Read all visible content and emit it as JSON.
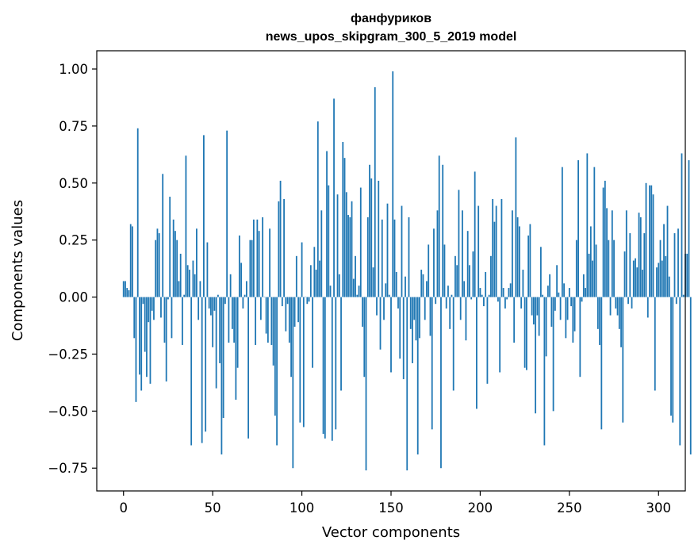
{
  "chart_data": {
    "type": "bar",
    "title": "фанфуриков",
    "subtitle": "news_upos_skipgram_300_5_2019 model",
    "xlabel": "Vector components",
    "ylabel": "Components values",
    "xlim": [
      -15,
      315
    ],
    "ylim": [
      -0.85,
      1.08
    ],
    "xticks": [
      0,
      50,
      100,
      150,
      200,
      250,
      300
    ],
    "yticks": [
      -0.75,
      -0.5,
      -0.25,
      0.0,
      0.25,
      0.5,
      0.75,
      1.0
    ],
    "ytick_labels": [
      "−0.75",
      "−0.50",
      "−0.25",
      "0.00",
      "0.25",
      "0.50",
      "0.75",
      "1.00"
    ],
    "bar_color": "#1f77b4",
    "grid": false,
    "legend": "none",
    "values": [
      0.07,
      0.07,
      0.04,
      0.03,
      0.32,
      0.31,
      -0.18,
      -0.46,
      0.74,
      -0.34,
      -0.41,
      -0.03,
      -0.24,
      -0.35,
      -0.11,
      -0.38,
      -0.06,
      -0.1,
      0.25,
      0.3,
      0.28,
      -0.09,
      0.54,
      -0.2,
      -0.37,
      -0.01,
      0.44,
      -0.18,
      0.34,
      0.29,
      0.25,
      0.07,
      0.19,
      -0.21,
      0.01,
      0.62,
      0.14,
      0.12,
      -0.65,
      0.16,
      0.1,
      0.3,
      -0.1,
      0.07,
      -0.64,
      0.71,
      -0.59,
      0.24,
      -0.05,
      -0.08,
      -0.22,
      -0.06,
      -0.4,
      0.01,
      -0.29,
      -0.69,
      -0.53,
      -0.03,
      0.73,
      -0.2,
      0.1,
      -0.14,
      -0.2,
      -0.45,
      -0.31,
      0.27,
      0.15,
      -0.05,
      0.01,
      0.07,
      -0.62,
      0.25,
      0.25,
      0.34,
      -0.21,
      0.34,
      0.29,
      -0.1,
      0.35,
      0.0,
      -0.16,
      -0.2,
      0.3,
      -0.21,
      -0.3,
      -0.52,
      -0.65,
      0.42,
      0.51,
      -0.04,
      0.43,
      -0.15,
      -0.03,
      -0.2,
      -0.35,
      -0.75,
      -0.13,
      0.18,
      -0.11,
      -0.55,
      0.24,
      -0.57,
      0.0,
      -0.03,
      -0.02,
      0.14,
      -0.31,
      0.22,
      0.12,
      0.77,
      0.16,
      0.38,
      -0.6,
      -0.62,
      0.64,
      0.49,
      0.05,
      -0.63,
      0.87,
      -0.58,
      0.45,
      0.1,
      -0.41,
      0.68,
      0.61,
      0.46,
      0.36,
      0.35,
      0.42,
      0.08,
      0.18,
      0.01,
      0.05,
      0.48,
      -0.13,
      -0.35,
      -0.76,
      0.35,
      0.58,
      0.52,
      0.13,
      0.92,
      -0.08,
      0.51,
      -0.23,
      0.34,
      -0.1,
      0.06,
      0.41,
      0.01,
      -0.33,
      0.99,
      0.34,
      0.11,
      -0.05,
      -0.27,
      0.4,
      -0.36,
      0.09,
      -0.76,
      0.35,
      -0.14,
      -0.29,
      -0.1,
      -0.19,
      -0.69,
      -0.18,
      0.12,
      0.1,
      -0.1,
      0.07,
      0.23,
      -0.17,
      -0.58,
      0.3,
      -0.03,
      0.38,
      0.62,
      -0.75,
      0.58,
      0.23,
      -0.05,
      0.05,
      -0.14,
      0.01,
      -0.41,
      0.18,
      0.14,
      0.47,
      -0.1,
      0.38,
      0.07,
      -0.19,
      0.29,
      0.14,
      -0.01,
      0.2,
      0.55,
      -0.49,
      0.4,
      0.04,
      0.01,
      -0.04,
      0.11,
      -0.38,
      0.01,
      0.18,
      0.43,
      0.33,
      0.4,
      -0.02,
      -0.33,
      0.43,
      0.04,
      -0.05,
      -0.01,
      0.04,
      0.06,
      0.38,
      -0.2,
      0.7,
      0.35,
      0.31,
      -0.05,
      0.12,
      -0.31,
      -0.32,
      0.27,
      0.32,
      -0.08,
      -0.12,
      -0.51,
      -0.08,
      -0.17,
      0.22,
      0.01,
      -0.65,
      -0.26,
      0.05,
      0.1,
      -0.13,
      -0.5,
      -0.06,
      0.14,
      0.02,
      -0.1,
      0.57,
      0.06,
      -0.18,
      -0.1,
      0.04,
      -0.04,
      -0.2,
      -0.15,
      0.25,
      0.6,
      -0.35,
      -0.02,
      0.1,
      0.04,
      0.63,
      0.19,
      0.31,
      0.16,
      0.57,
      0.23,
      -0.14,
      -0.21,
      -0.58,
      0.48,
      0.51,
      0.39,
      0.25,
      -0.08,
      0.38,
      0.25,
      -0.05,
      -0.08,
      -0.14,
      -0.22,
      -0.55,
      0.2,
      0.38,
      -0.03,
      0.28,
      -0.05,
      0.16,
      0.17,
      0.13,
      0.37,
      0.35,
      0.12,
      0.28,
      0.5,
      -0.09,
      0.49,
      0.49,
      0.45,
      -0.41,
      0.13,
      0.15,
      0.25,
      0.16,
      0.32,
      0.18,
      0.4,
      0.09,
      -0.52,
      -0.55,
      0.28,
      -0.03,
      0.3,
      -0.65,
      0.63,
      0.01,
      0.19,
      0.19,
      0.6,
      -0.69
    ]
  }
}
